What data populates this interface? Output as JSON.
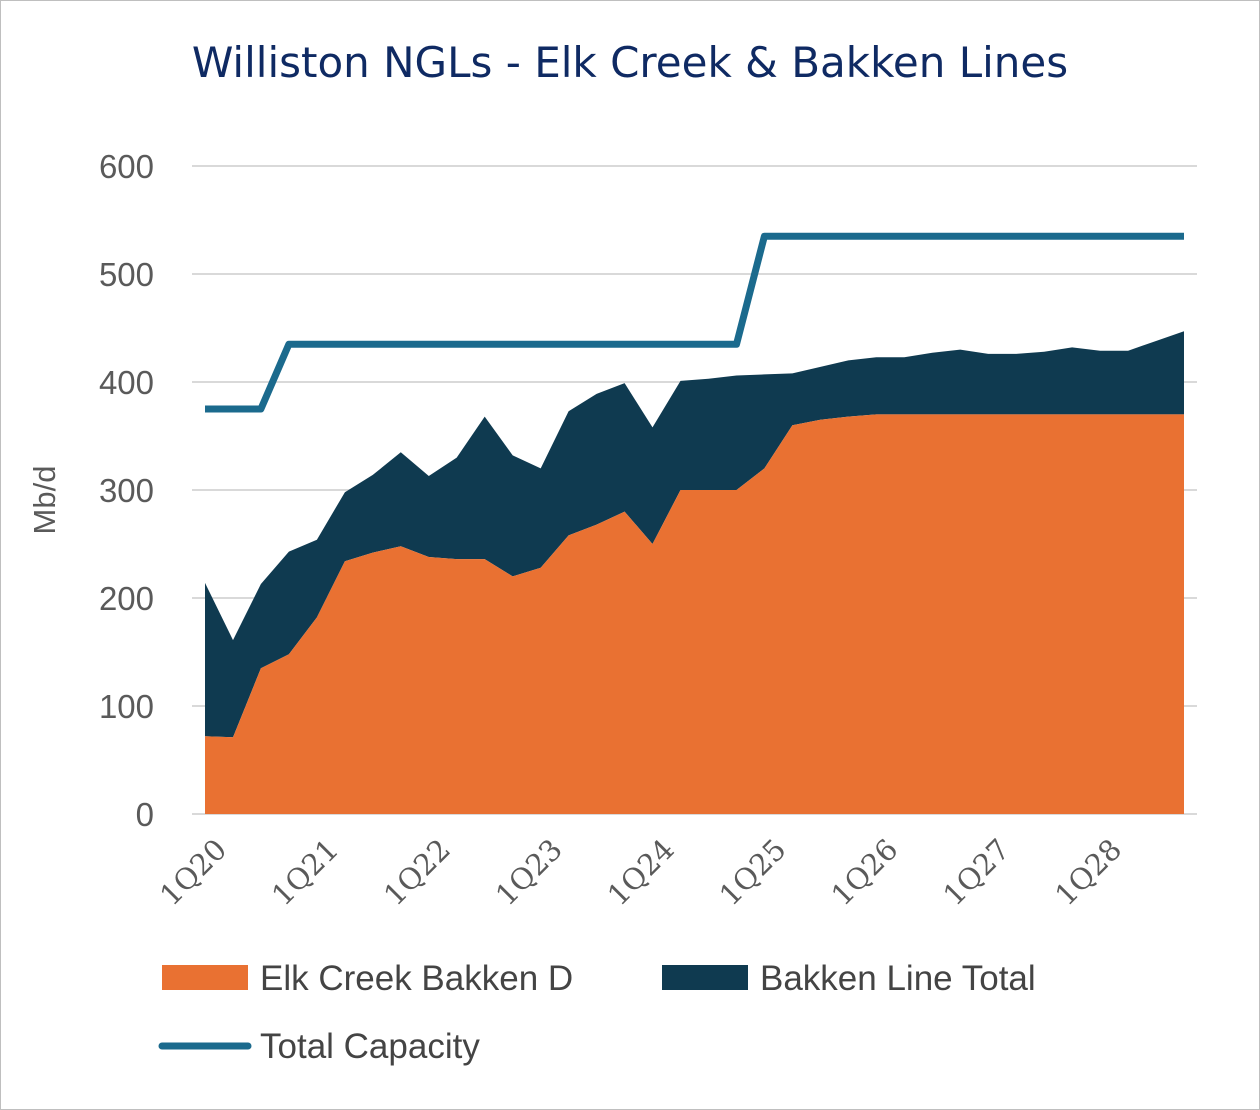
{
  "chart_data": {
    "type": "area",
    "title": "Williston NGLs - Elk Creek & Bakken Lines",
    "ylabel": "Mb/d",
    "xlabel": "",
    "ylim": [
      0,
      600
    ],
    "yticks": [
      "0",
      "100",
      "200",
      "300",
      "400",
      "500",
      "600"
    ],
    "x_tick_labels": [
      "1Q20",
      "1Q21",
      "1Q22",
      "1Q23",
      "1Q24",
      "1Q25",
      "1Q26",
      "1Q27",
      "1Q28"
    ],
    "grid": true,
    "legend_position": "bottom",
    "colors": {
      "elk": "#e97132",
      "bakken": "#0f3a50",
      "capacity": "#1b6a8d"
    },
    "series": [
      {
        "name": "Elk Creek Bakken D",
        "kind": "stacked-area",
        "values": [
          72,
          71,
          135,
          148,
          182,
          234,
          242,
          248,
          238,
          236,
          236,
          220,
          228,
          258,
          268,
          280,
          250,
          300,
          300,
          300,
          320,
          360,
          365,
          368,
          370,
          370,
          370,
          370,
          370,
          370,
          370,
          370,
          370,
          370,
          370,
          370
        ]
      },
      {
        "name": "Bakken Line Total",
        "kind": "stacked-area",
        "values": [
          142,
          90,
          78,
          95,
          72,
          64,
          72,
          87,
          75,
          94,
          132,
          112,
          92,
          115,
          121,
          119,
          108,
          101,
          103,
          106,
          87,
          48,
          49,
          52,
          53,
          53,
          57,
          60,
          56,
          56,
          58,
          62,
          59,
          59,
          68,
          77
        ]
      },
      {
        "name": "Total Capacity",
        "kind": "line",
        "values": [
          375,
          375,
          375,
          435,
          435,
          435,
          435,
          435,
          435,
          435,
          435,
          435,
          435,
          435,
          435,
          435,
          435,
          435,
          435,
          435,
          535,
          535,
          535,
          535,
          535,
          535,
          535,
          535,
          535,
          535,
          535,
          535,
          535,
          535,
          535,
          535
        ]
      }
    ]
  }
}
